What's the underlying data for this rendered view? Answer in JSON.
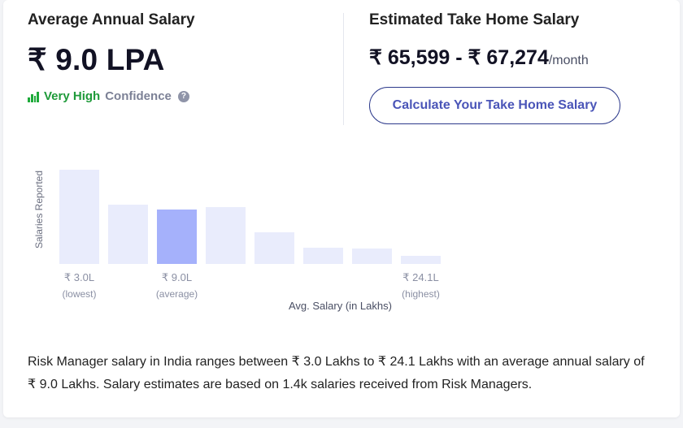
{
  "average_salary": {
    "title": "Average Annual Salary",
    "value": "₹ 9.0 LPA",
    "confidence_level": "Very High",
    "confidence_label": "Confidence",
    "help_icon": "question-circle-icon"
  },
  "take_home": {
    "title": "Estimated Take Home Salary",
    "value": "₹ 65,599 - ₹ 67,274",
    "unit": "/month",
    "button_label": "Calculate Your Take Home Salary"
  },
  "colors": {
    "accent": "#4a55b8",
    "high_confidence": "#1f9a3a",
    "bar_default": "#e9ecfc",
    "bar_average": "#a5b1fb"
  },
  "chart_data": {
    "type": "bar",
    "ylabel": "Salaries Reported",
    "xlabel": "Avg. Salary (in Lakhs)",
    "relative_frequencies": [
      1.0,
      0.63,
      0.58,
      0.6,
      0.34,
      0.17,
      0.16,
      0.09
    ],
    "highlighted_bar_index": 2,
    "tick_labels": [
      {
        "bar_index": 0,
        "value": "₹ 3.0L",
        "sub": "(lowest)"
      },
      {
        "bar_index": 2,
        "value": "₹ 9.0L",
        "sub": "(average)"
      },
      {
        "bar_index": 7,
        "value": "₹ 24.1L",
        "sub": "(highest)"
      }
    ]
  },
  "description": "Risk Manager salary in India ranges between ₹ 3.0 Lakhs to ₹ 24.1 Lakhs with an average annual salary of ₹ 9.0 Lakhs. Salary estimates are based on 1.4k salaries received from Risk Managers."
}
